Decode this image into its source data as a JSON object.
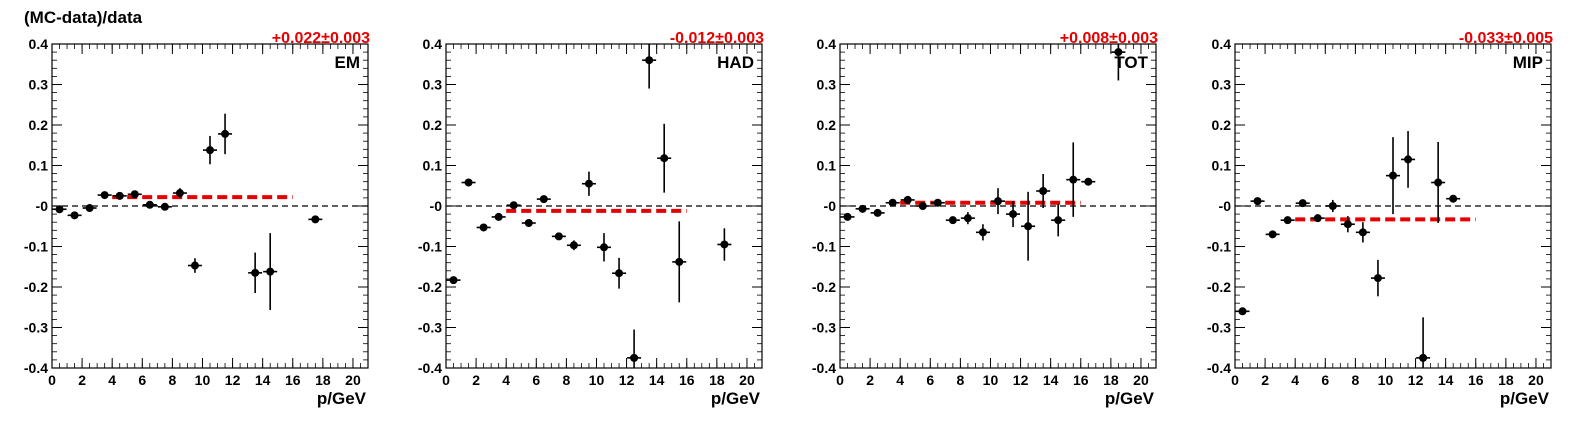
{
  "ylabel": "(MC-data)/data",
  "chart_data": [
    {
      "type": "scatter",
      "label": "EM",
      "fit": "+0.022±0.003",
      "fit_value": 0.022,
      "fit_range": [
        4,
        16
      ],
      "xlabel": "p/GeV",
      "xlim": [
        0,
        21
      ],
      "ylim": [
        -0.4,
        0.4
      ],
      "xticks": [
        0,
        2,
        4,
        6,
        8,
        10,
        12,
        14,
        16,
        18,
        20
      ],
      "yticks": [
        -0.4,
        -0.3,
        -0.2,
        -0.1,
        0,
        0.1,
        0.2,
        0.3,
        0.4
      ],
      "yticklabels": [
        "-0.4",
        "-0.3",
        "-0.2",
        "-0.1",
        "-0",
        "0.1",
        "0.2",
        "0.3",
        "0.4"
      ],
      "points": [
        {
          "x": 0.5,
          "y": -0.008,
          "err": 0.006
        },
        {
          "x": 1.5,
          "y": -0.023,
          "err": 0.006
        },
        {
          "x": 2.5,
          "y": -0.005,
          "err": 0.006
        },
        {
          "x": 3.5,
          "y": 0.027,
          "err": 0.006
        },
        {
          "x": 4.5,
          "y": 0.025,
          "err": 0.006
        },
        {
          "x": 5.5,
          "y": 0.029,
          "err": 0.006
        },
        {
          "x": 6.5,
          "y": 0.003,
          "err": 0.006
        },
        {
          "x": 7.5,
          "y": -0.002,
          "err": 0.008
        },
        {
          "x": 8.5,
          "y": 0.032,
          "err": 0.012
        },
        {
          "x": 9.5,
          "y": -0.147,
          "err": 0.018
        },
        {
          "x": 10.5,
          "y": 0.138,
          "err": 0.035
        },
        {
          "x": 11.5,
          "y": 0.178,
          "err": 0.05
        },
        {
          "x": 13.5,
          "y": -0.165,
          "err": 0.05
        },
        {
          "x": 14.5,
          "y": -0.162,
          "err": 0.095
        },
        {
          "x": 17.5,
          "y": -0.033,
          "err": 0.006
        }
      ]
    },
    {
      "type": "scatter",
      "label": "HAD",
      "fit": "-0.012±0.003",
      "fit_value": -0.012,
      "fit_range": [
        4,
        16
      ],
      "xlabel": "p/GeV",
      "xlim": [
        0,
        21
      ],
      "ylim": [
        -0.4,
        0.4
      ],
      "xticks": [
        0,
        2,
        4,
        6,
        8,
        10,
        12,
        14,
        16,
        18,
        20
      ],
      "yticks": [
        -0.4,
        -0.3,
        -0.2,
        -0.1,
        0,
        0.1,
        0.2,
        0.3,
        0.4
      ],
      "yticklabels": [
        "-0.4",
        "-0.3",
        "-0.2",
        "-0.1",
        "-0",
        "0.1",
        "0.2",
        "0.3",
        "0.4"
      ],
      "points": [
        {
          "x": 0.5,
          "y": -0.183,
          "err": 0.006
        },
        {
          "x": 1.5,
          "y": 0.058,
          "err": 0.006
        },
        {
          "x": 2.5,
          "y": -0.053,
          "err": 0.006
        },
        {
          "x": 3.5,
          "y": -0.027,
          "err": 0.006
        },
        {
          "x": 4.5,
          "y": 0.002,
          "err": 0.006
        },
        {
          "x": 5.5,
          "y": -0.042,
          "err": 0.006
        },
        {
          "x": 6.5,
          "y": 0.017,
          "err": 0.007
        },
        {
          "x": 7.5,
          "y": -0.075,
          "err": 0.009
        },
        {
          "x": 8.5,
          "y": -0.097,
          "err": 0.012
        },
        {
          "x": 9.5,
          "y": 0.055,
          "err": 0.03
        },
        {
          "x": 10.5,
          "y": -0.102,
          "err": 0.035
        },
        {
          "x": 11.5,
          "y": -0.166,
          "err": 0.038
        },
        {
          "x": 12.5,
          "y": -0.375,
          "err": 0.07
        },
        {
          "x": 13.5,
          "y": 0.36,
          "err": 0.07
        },
        {
          "x": 14.5,
          "y": 0.118,
          "err": 0.085
        },
        {
          "x": 15.5,
          "y": -0.138,
          "err": 0.1
        },
        {
          "x": 18.5,
          "y": -0.095,
          "err": 0.04
        }
      ]
    },
    {
      "type": "scatter",
      "label": "TOT",
      "fit": "+0.008±0.003",
      "fit_value": 0.008,
      "fit_range": [
        4,
        16
      ],
      "xlabel": "p/GeV",
      "xlim": [
        0,
        21
      ],
      "ylim": [
        -0.4,
        0.4
      ],
      "xticks": [
        0,
        2,
        4,
        6,
        8,
        10,
        12,
        14,
        16,
        18,
        20
      ],
      "yticks": [
        -0.4,
        -0.3,
        -0.2,
        -0.1,
        0,
        0.1,
        0.2,
        0.3,
        0.4
      ],
      "yticklabels": [
        "-0.4",
        "-0.3",
        "-0.2",
        "-0.1",
        "-0",
        "0.1",
        "0.2",
        "0.3",
        "0.4"
      ],
      "points": [
        {
          "x": 0.5,
          "y": -0.027,
          "err": 0.006
        },
        {
          "x": 1.5,
          "y": -0.007,
          "err": 0.006
        },
        {
          "x": 2.5,
          "y": -0.017,
          "err": 0.006
        },
        {
          "x": 3.5,
          "y": 0.008,
          "err": 0.006
        },
        {
          "x": 4.5,
          "y": 0.015,
          "err": 0.006
        },
        {
          "x": 5.5,
          "y": 0.0,
          "err": 0.006
        },
        {
          "x": 6.5,
          "y": 0.008,
          "err": 0.006
        },
        {
          "x": 7.5,
          "y": -0.035,
          "err": 0.008
        },
        {
          "x": 8.5,
          "y": -0.03,
          "err": 0.015
        },
        {
          "x": 9.5,
          "y": -0.065,
          "err": 0.02
        },
        {
          "x": 10.5,
          "y": 0.012,
          "err": 0.032
        },
        {
          "x": 11.5,
          "y": -0.02,
          "err": 0.032
        },
        {
          "x": 12.5,
          "y": -0.05,
          "err": 0.085
        },
        {
          "x": 13.5,
          "y": 0.037,
          "err": 0.042
        },
        {
          "x": 14.5,
          "y": -0.035,
          "err": 0.04
        },
        {
          "x": 15.5,
          "y": 0.065,
          "err": 0.092
        },
        {
          "x": 16.5,
          "y": 0.06,
          "err": 0.006
        },
        {
          "x": 18.5,
          "y": 0.38,
          "err": 0.07
        }
      ]
    },
    {
      "type": "scatter",
      "label": "MIP",
      "fit": "-0.033±0.005",
      "fit_value": -0.033,
      "fit_range": [
        4,
        16
      ],
      "xlabel": "p/GeV",
      "xlim": [
        0,
        21
      ],
      "ylim": [
        -0.4,
        0.4
      ],
      "xticks": [
        0,
        2,
        4,
        6,
        8,
        10,
        12,
        14,
        16,
        18,
        20
      ],
      "yticks": [
        -0.4,
        -0.3,
        -0.2,
        -0.1,
        0,
        0.1,
        0.2,
        0.3,
        0.4
      ],
      "yticklabels": [
        "-0.4",
        "-0.3",
        "-0.2",
        "-0.1",
        "-0",
        "0.1",
        "0.2",
        "0.3",
        "0.4"
      ],
      "points": [
        {
          "x": 0.5,
          "y": -0.26,
          "err": 0.006
        },
        {
          "x": 1.5,
          "y": 0.012,
          "err": 0.006
        },
        {
          "x": 2.5,
          "y": -0.07,
          "err": 0.006
        },
        {
          "x": 3.5,
          "y": -0.035,
          "err": 0.006
        },
        {
          "x": 4.5,
          "y": 0.007,
          "err": 0.006
        },
        {
          "x": 5.5,
          "y": -0.03,
          "err": 0.006
        },
        {
          "x": 6.5,
          "y": 0.0,
          "err": 0.015
        },
        {
          "x": 7.5,
          "y": -0.045,
          "err": 0.02
        },
        {
          "x": 8.5,
          "y": -0.065,
          "err": 0.025
        },
        {
          "x": 9.5,
          "y": -0.178,
          "err": 0.045
        },
        {
          "x": 10.5,
          "y": 0.075,
          "err": 0.095
        },
        {
          "x": 11.5,
          "y": 0.115,
          "err": 0.07
        },
        {
          "x": 12.5,
          "y": -0.375,
          "err": 0.1
        },
        {
          "x": 13.5,
          "y": 0.058,
          "err": 0.1
        },
        {
          "x": 14.5,
          "y": 0.018,
          "err": 0.006
        }
      ]
    }
  ]
}
